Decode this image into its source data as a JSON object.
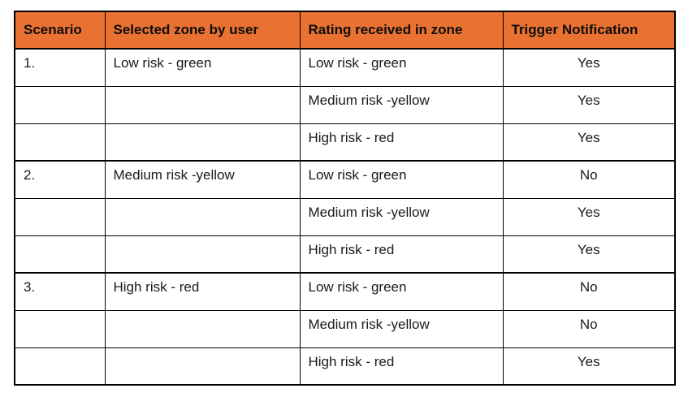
{
  "table": {
    "accent_color": "#E97132",
    "border_color": "#000000",
    "columns": [
      "Scenario",
      "Selected zone by user",
      "Rating received in zone",
      "Trigger Notification"
    ],
    "rows": [
      {
        "scenario": "1.",
        "selected_zone": "Low risk - green",
        "rating": "Low risk - green",
        "trigger": "Yes",
        "group_start": true
      },
      {
        "scenario": "",
        "selected_zone": "",
        "rating": "Medium risk -yellow",
        "trigger": "Yes",
        "group_start": false
      },
      {
        "scenario": "",
        "selected_zone": "",
        "rating": "High risk - red",
        "trigger": "Yes",
        "group_start": false
      },
      {
        "scenario": "2.",
        "selected_zone": "Medium risk -yellow",
        "rating": "Low risk - green",
        "trigger": "No",
        "group_start": true
      },
      {
        "scenario": "",
        "selected_zone": "",
        "rating": "Medium risk -yellow",
        "trigger": "Yes",
        "group_start": false
      },
      {
        "scenario": "",
        "selected_zone": "",
        "rating": "High risk - red",
        "trigger": "Yes",
        "group_start": false
      },
      {
        "scenario": "3.",
        "selected_zone": "High risk - red",
        "rating": "Low risk - green",
        "trigger": "No",
        "group_start": true
      },
      {
        "scenario": "",
        "selected_zone": "",
        "rating": "Medium risk -yellow",
        "trigger": "No",
        "group_start": false
      },
      {
        "scenario": "",
        "selected_zone": "",
        "rating": "High risk - red",
        "trigger": "Yes",
        "group_start": false
      }
    ]
  }
}
